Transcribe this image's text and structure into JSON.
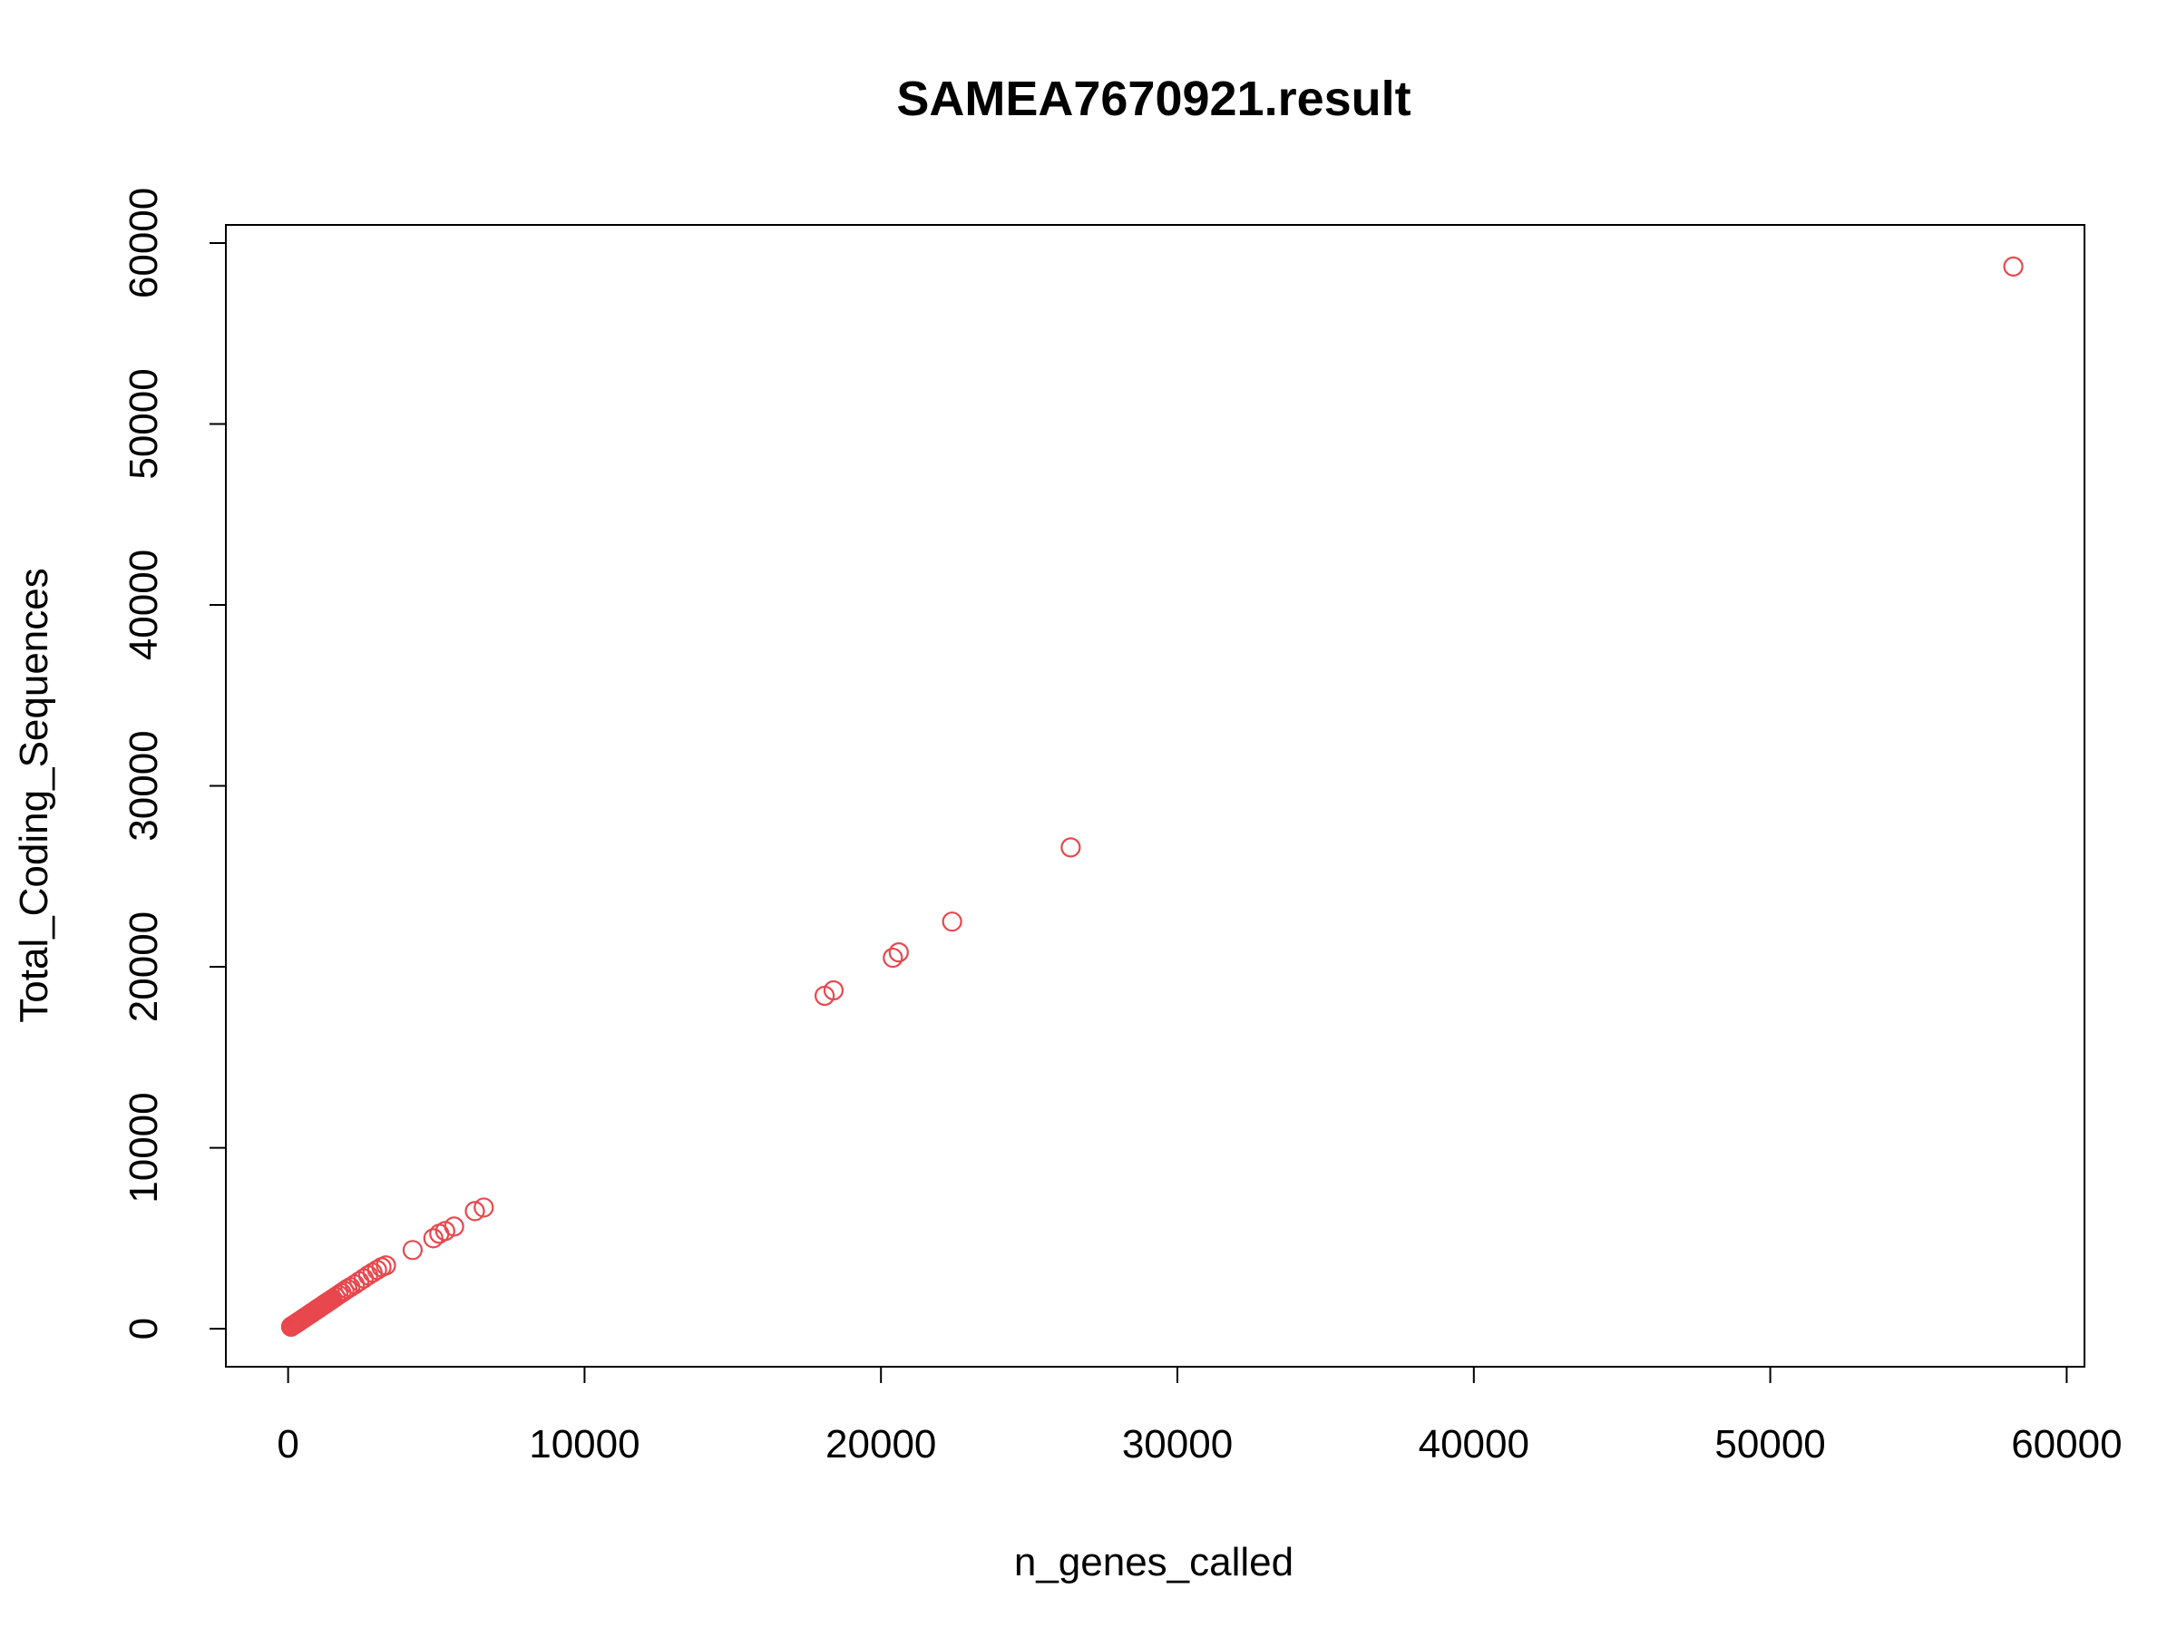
{
  "chart_data": {
    "type": "scatter",
    "title": "SAMEA7670921.result",
    "xlabel": "n_genes_called",
    "ylabel": "Total_Coding_Sequences",
    "xlim": [
      -2100,
      60600
    ],
    "ylim": [
      -2100,
      61000
    ],
    "xticks": [
      0,
      10000,
      20000,
      30000,
      40000,
      50000,
      60000
    ],
    "yticks": [
      0,
      10000,
      20000,
      30000,
      40000,
      50000,
      60000
    ],
    "xtick_labels": [
      "0",
      "10000",
      "20000",
      "30000",
      "40000",
      "50000",
      "60000"
    ],
    "ytick_labels": [
      "0",
      "10000",
      "20000",
      "30000",
      "40000",
      "50000",
      "60000"
    ],
    "grid": false,
    "legend": "none",
    "marker": "open-circle",
    "point_color": "#e8474d",
    "points": [
      {
        "x": 100,
        "y": 110
      },
      {
        "x": 150,
        "y": 170
      },
      {
        "x": 200,
        "y": 220
      },
      {
        "x": 250,
        "y": 270
      },
      {
        "x": 300,
        "y": 330
      },
      {
        "x": 350,
        "y": 380
      },
      {
        "x": 400,
        "y": 440
      },
      {
        "x": 450,
        "y": 490
      },
      {
        "x": 500,
        "y": 550
      },
      {
        "x": 550,
        "y": 600
      },
      {
        "x": 600,
        "y": 660
      },
      {
        "x": 650,
        "y": 710
      },
      {
        "x": 700,
        "y": 770
      },
      {
        "x": 750,
        "y": 820
      },
      {
        "x": 800,
        "y": 880
      },
      {
        "x": 850,
        "y": 930
      },
      {
        "x": 900,
        "y": 990
      },
      {
        "x": 950,
        "y": 1040
      },
      {
        "x": 1000,
        "y": 1100
      },
      {
        "x": 1050,
        "y": 1150
      },
      {
        "x": 1100,
        "y": 1210
      },
      {
        "x": 1150,
        "y": 1260
      },
      {
        "x": 1200,
        "y": 1320
      },
      {
        "x": 1250,
        "y": 1370
      },
      {
        "x": 1300,
        "y": 1430
      },
      {
        "x": 1350,
        "y": 1480
      },
      {
        "x": 1400,
        "y": 1540
      },
      {
        "x": 1450,
        "y": 1590
      },
      {
        "x": 1500,
        "y": 1650
      },
      {
        "x": 1600,
        "y": 1760
      },
      {
        "x": 1700,
        "y": 1870
      },
      {
        "x": 1800,
        "y": 1980
      },
      {
        "x": 1900,
        "y": 2090
      },
      {
        "x": 2000,
        "y": 2200
      },
      {
        "x": 2100,
        "y": 2300
      },
      {
        "x": 2250,
        "y": 2450
      },
      {
        "x": 2400,
        "y": 2620
      },
      {
        "x": 2550,
        "y": 2780
      },
      {
        "x": 2700,
        "y": 2950
      },
      {
        "x": 2850,
        "y": 3100
      },
      {
        "x": 3000,
        "y": 3250
      },
      {
        "x": 3150,
        "y": 3400
      },
      {
        "x": 3300,
        "y": 3500
      },
      {
        "x": 4200,
        "y": 4350
      },
      {
        "x": 4900,
        "y": 5000
      },
      {
        "x": 5100,
        "y": 5250
      },
      {
        "x": 5300,
        "y": 5400
      },
      {
        "x": 5600,
        "y": 5650
      },
      {
        "x": 6300,
        "y": 6500
      },
      {
        "x": 6600,
        "y": 6700
      },
      {
        "x": 18100,
        "y": 18400
      },
      {
        "x": 18400,
        "y": 18700
      },
      {
        "x": 20400,
        "y": 20500
      },
      {
        "x": 20600,
        "y": 20800
      },
      {
        "x": 22400,
        "y": 22500
      },
      {
        "x": 26400,
        "y": 26600
      },
      {
        "x": 58200,
        "y": 58700
      }
    ]
  }
}
